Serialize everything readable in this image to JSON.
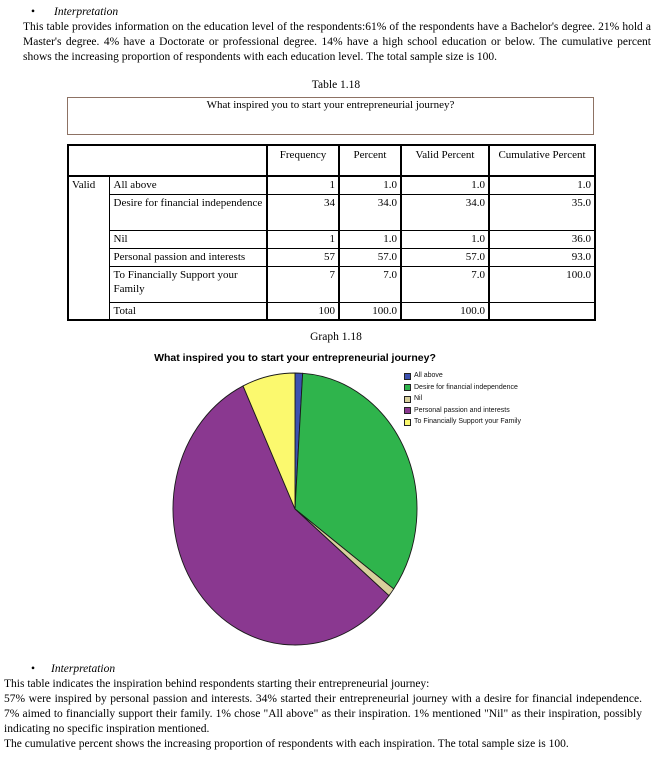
{
  "page": {
    "interpretation_top": {
      "bullet": "•",
      "heading": "Interpretation",
      "body": "This table provides information on the education level of the respondents:61% of the respondents have a Bachelor's degree. 21% hold a Master's degree. 4% have a Doctorate or professional degree. 14% have a high school education or below. The cumulative percent shows the increasing proportion of respondents with each education level. The total sample size is 100."
    },
    "table_caption": "Table 1.18",
    "table": {
      "title": "What inspired you to start your entrepreneurial journey?",
      "row_group": "Valid",
      "columns": [
        "",
        "Frequency",
        "Percent",
        "Valid Percent",
        "Cumulative Percent"
      ],
      "rows": [
        {
          "label": "All above",
          "frequency": "1",
          "percent": "1.0",
          "valid_percent": "1.0",
          "cumulative_percent": "1.0"
        },
        {
          "label": "Desire for financial independence",
          "frequency": "34",
          "percent": "34.0",
          "valid_percent": "34.0",
          "cumulative_percent": "35.0"
        },
        {
          "label": "Nil",
          "frequency": "1",
          "percent": "1.0",
          "valid_percent": "1.0",
          "cumulative_percent": "36.0"
        },
        {
          "label": "Personal passion and interests",
          "frequency": "57",
          "percent": "57.0",
          "valid_percent": "57.0",
          "cumulative_percent": "93.0"
        },
        {
          "label": "To Financially Support your Family",
          "frequency": "7",
          "percent": "7.0",
          "valid_percent": "7.0",
          "cumulative_percent": "100.0"
        },
        {
          "label": "Total",
          "frequency": "100",
          "percent": "100.0",
          "valid_percent": "100.0",
          "cumulative_percent": ""
        }
      ]
    },
    "graph_caption": "Graph 1.18",
    "interpretation_bottom": {
      "bullet": "•",
      "heading": "Interpretation",
      "intro": "This table indicates the inspiration behind respondents starting their entrepreneurial journey:",
      "body": "57% were inspired by personal passion and interests. 34% started their entrepreneurial journey with a desire for financial independence. 7% aimed to financially support their family. 1% chose \"All above\" as their inspiration. 1% mentioned \"Nil\" as their inspiration, possibly indicating no specific inspiration mentioned.",
      "closing": "The cumulative percent shows the increasing proportion of respondents with each inspiration. The total sample size is 100."
    }
  },
  "chart_data": {
    "type": "pie",
    "title": "What inspired you to start your entrepreneurial journey?",
    "categories": [
      "All above",
      "Desire for financial independence",
      "Nil",
      "Personal passion and interests",
      "To Financially Support your Family"
    ],
    "values": [
      1,
      34,
      1,
      57,
      7
    ],
    "colors": [
      "#3c51b1",
      "#2fb44c",
      "#d8d09c",
      "#8a3890",
      "#fbf96e"
    ],
    "start_angle_deg": 0,
    "direction": "clockwise",
    "legend_position": "top-right",
    "data_labels": false
  }
}
